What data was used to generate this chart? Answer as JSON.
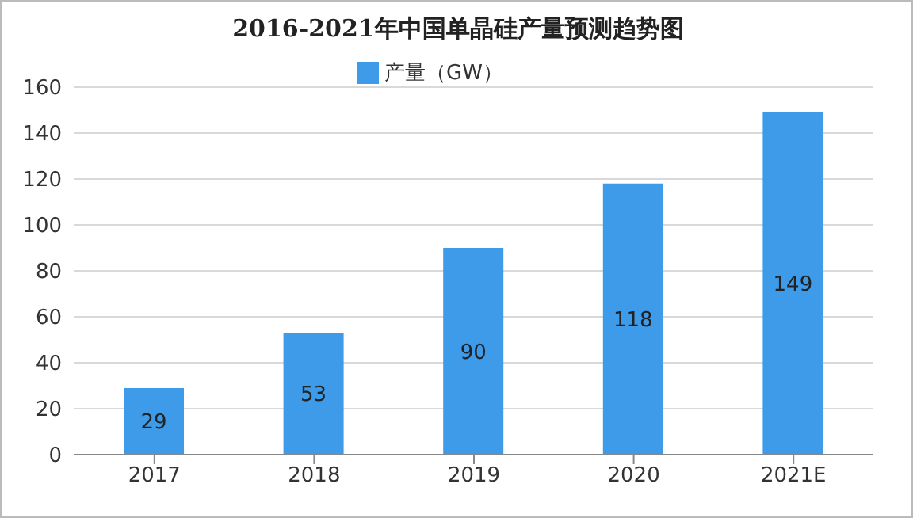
{
  "chart_data": {
    "type": "bar",
    "title": "2016-2021年中国单晶硅产量预测趋势图",
    "categories": [
      "2017",
      "2018",
      "2019",
      "2020",
      "2021E"
    ],
    "series": [
      {
        "name": "产量（GW）",
        "color": "#3d9be9",
        "values": [
          29,
          53,
          90,
          118,
          149
        ]
      }
    ],
    "ylim": [
      0,
      160
    ],
    "yticks": [
      0,
      20,
      40,
      60,
      80,
      100,
      120,
      140,
      160
    ],
    "grid": "y",
    "legend": "top",
    "data_labels": true
  }
}
